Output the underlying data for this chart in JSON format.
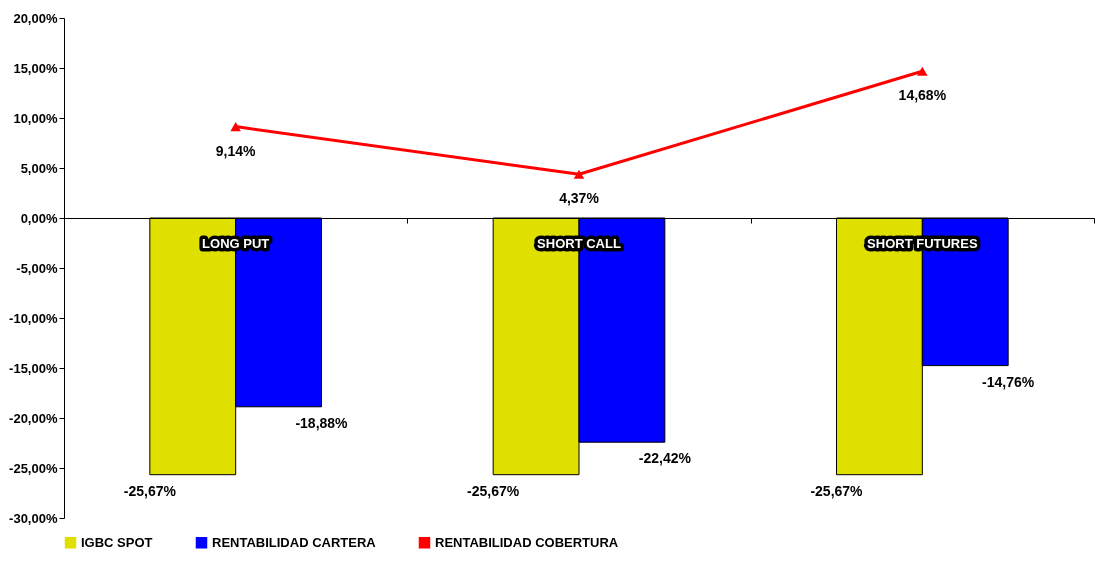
{
  "chart_data": {
    "type": "bar",
    "categories": [
      "LONG PUT",
      "SHORT CALL",
      "SHORT FUTURES"
    ],
    "series": [
      {
        "name": "IGBC SPOT",
        "color": "#e0e000",
        "values": [
          -25.67,
          -25.67,
          -25.67
        ]
      },
      {
        "name": "RENTABILIDAD CARTERA",
        "color": "#0000ff",
        "values": [
          -18.88,
          -22.42,
          -14.76
        ]
      },
      {
        "name": "RENTABILIDAD COBERTURA",
        "color": "#ff0000",
        "type": "line",
        "marker": "triangle",
        "values": [
          9.14,
          4.37,
          14.68
        ]
      }
    ],
    "value_labels": [
      [
        "-25,67%",
        "-25,67%",
        "-25,67%"
      ],
      [
        "-18,88%",
        "-22,42%",
        "-14,76%"
      ],
      [
        "9,14%",
        "4,37%",
        "14,68%"
      ]
    ],
    "ylim": [
      -30,
      20
    ],
    "yticks": [
      {
        "value": -30,
        "label": "-30,00%"
      },
      {
        "value": -25,
        "label": "-25,00%"
      },
      {
        "value": -20,
        "label": "-20,00%"
      },
      {
        "value": -15,
        "label": "-15,00%"
      },
      {
        "value": -10,
        "label": "-10,00%"
      },
      {
        "value": -5,
        "label": "-5,00%"
      },
      {
        "value": 0,
        "label": "0,00%"
      },
      {
        "value": 5,
        "label": "5,00%"
      },
      {
        "value": 10,
        "label": "10,00%"
      },
      {
        "value": 15,
        "label": "15,00%"
      },
      {
        "value": 20,
        "label": "20,00%"
      }
    ],
    "legend": "bottom",
    "grid": false
  }
}
